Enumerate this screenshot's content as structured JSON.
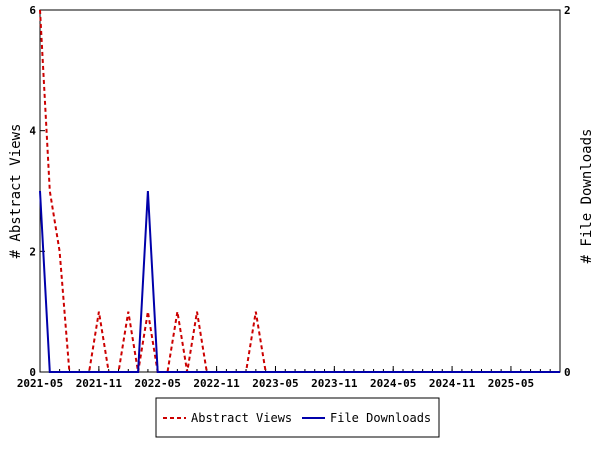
{
  "chart_data": {
    "type": "line",
    "title": "",
    "y_left_label": "# Abstract Views",
    "y_right_label": "# File Downloads",
    "y_left_range": [
      0,
      6
    ],
    "y_right_range": [
      0,
      2
    ],
    "y_left_ticks": [
      "0",
      "2",
      "4",
      "6"
    ],
    "y_right_ticks": [
      "0",
      "2"
    ],
    "x_ticks": [
      "2021-05",
      "2021-11",
      "2022-05",
      "2022-11",
      "2023-05",
      "2023-11",
      "2024-05",
      "2024-11",
      "2025-05"
    ],
    "x_range": [
      "2021-05",
      "2025-10"
    ],
    "grid": false,
    "legend_position": "bottom",
    "series": [
      {
        "name": "Abstract Views",
        "axis": "left",
        "color": "#cc0000",
        "dash": "dashed",
        "points": [
          [
            "2021-05",
            6
          ],
          [
            "2021-06",
            3
          ],
          [
            "2021-07",
            2
          ],
          [
            "2021-08",
            0
          ],
          [
            "2021-09",
            0
          ],
          [
            "2021-10",
            0
          ],
          [
            "2021-11",
            1
          ],
          [
            "2021-12",
            0
          ],
          [
            "2022-01",
            0
          ],
          [
            "2022-02",
            1
          ],
          [
            "2022-03",
            0
          ],
          [
            "2022-04",
            1
          ],
          [
            "2022-05",
            0
          ],
          [
            "2022-06",
            0
          ],
          [
            "2022-07",
            1
          ],
          [
            "2022-08",
            0
          ],
          [
            "2022-09",
            1
          ],
          [
            "2022-10",
            0
          ],
          [
            "2022-11",
            0
          ],
          [
            "2022-12",
            0
          ],
          [
            "2023-01",
            0
          ],
          [
            "2023-02",
            0
          ],
          [
            "2023-03",
            1
          ],
          [
            "2023-04",
            0
          ],
          [
            "2023-05",
            0
          ],
          [
            "2025-10",
            0
          ]
        ]
      },
      {
        "name": "File Downloads",
        "axis": "right",
        "color": "#0000aa",
        "dash": "solid",
        "points": [
          [
            "2021-05",
            1
          ],
          [
            "2021-06",
            0
          ],
          [
            "2022-03",
            0
          ],
          [
            "2022-04",
            1
          ],
          [
            "2022-05",
            0
          ],
          [
            "2025-10",
            0
          ]
        ]
      }
    ]
  }
}
